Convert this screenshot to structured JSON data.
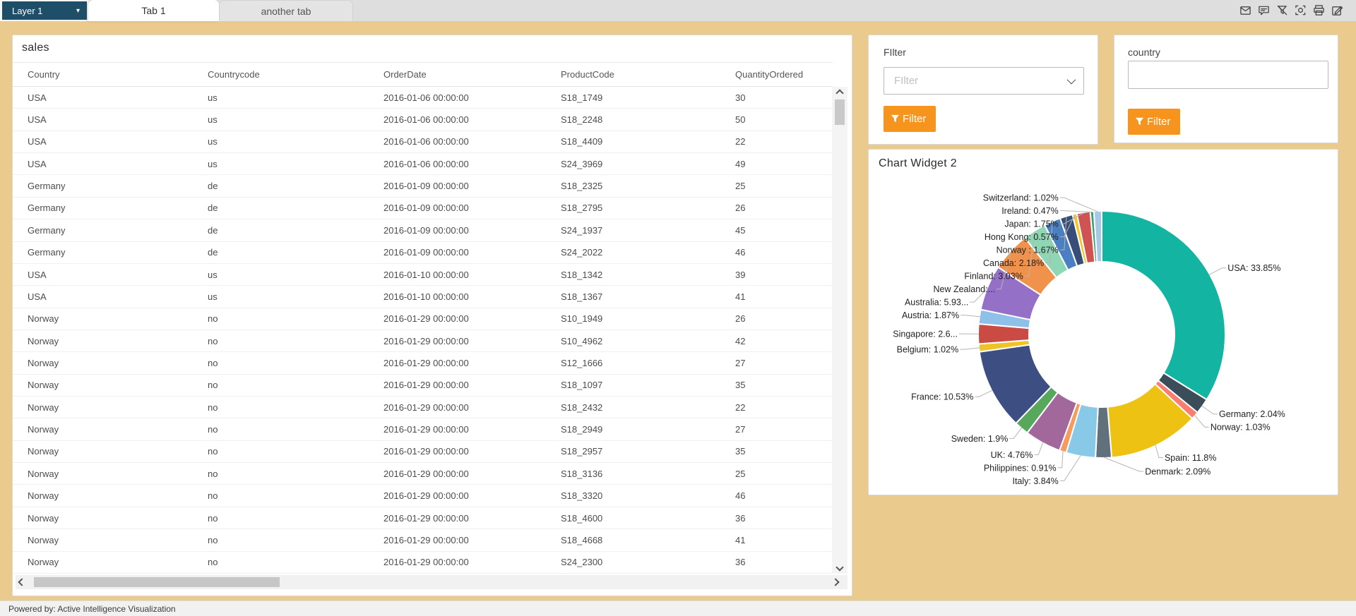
{
  "topbar": {
    "layer_label": "Layer 1",
    "tabs": [
      {
        "label": "Tab 1",
        "active": true
      },
      {
        "label": "another tab",
        "active": false
      }
    ],
    "icons": [
      "mail-icon",
      "comment-icon",
      "filter-clear-icon",
      "screenshot-icon",
      "print-icon",
      "edit-icon"
    ]
  },
  "table_widget": {
    "title": "sales",
    "columns": [
      "Country",
      "Countrycode",
      "OrderDate",
      "ProductCode",
      "QuantityOrdered"
    ],
    "rows": [
      [
        "USA",
        "us",
        "2016-01-06 00:00:00",
        "S18_1749",
        "30"
      ],
      [
        "USA",
        "us",
        "2016-01-06 00:00:00",
        "S18_2248",
        "50"
      ],
      [
        "USA",
        "us",
        "2016-01-06 00:00:00",
        "S18_4409",
        "22"
      ],
      [
        "USA",
        "us",
        "2016-01-06 00:00:00",
        "S24_3969",
        "49"
      ],
      [
        "Germany",
        "de",
        "2016-01-09 00:00:00",
        "S18_2325",
        "25"
      ],
      [
        "Germany",
        "de",
        "2016-01-09 00:00:00",
        "S18_2795",
        "26"
      ],
      [
        "Germany",
        "de",
        "2016-01-09 00:00:00",
        "S24_1937",
        "45"
      ],
      [
        "Germany",
        "de",
        "2016-01-09 00:00:00",
        "S24_2022",
        "46"
      ],
      [
        "USA",
        "us",
        "2016-01-10 00:00:00",
        "S18_1342",
        "39"
      ],
      [
        "USA",
        "us",
        "2016-01-10 00:00:00",
        "S18_1367",
        "41"
      ],
      [
        "Norway",
        "no",
        "2016-01-29 00:00:00",
        "S10_1949",
        "26"
      ],
      [
        "Norway",
        "no",
        "2016-01-29 00:00:00",
        "S10_4962",
        "42"
      ],
      [
        "Norway",
        "no",
        "2016-01-29 00:00:00",
        "S12_1666",
        "27"
      ],
      [
        "Norway",
        "no",
        "2016-01-29 00:00:00",
        "S18_1097",
        "35"
      ],
      [
        "Norway",
        "no",
        "2016-01-29 00:00:00",
        "S18_2432",
        "22"
      ],
      [
        "Norway",
        "no",
        "2016-01-29 00:00:00",
        "S18_2949",
        "27"
      ],
      [
        "Norway",
        "no",
        "2016-01-29 00:00:00",
        "S18_2957",
        "35"
      ],
      [
        "Norway",
        "no",
        "2016-01-29 00:00:00",
        "S18_3136",
        "25"
      ],
      [
        "Norway",
        "no",
        "2016-01-29 00:00:00",
        "S18_3320",
        "46"
      ],
      [
        "Norway",
        "no",
        "2016-01-29 00:00:00",
        "S18_4600",
        "36"
      ],
      [
        "Norway",
        "no",
        "2016-01-29 00:00:00",
        "S18_4668",
        "41"
      ],
      [
        "Norway",
        "no",
        "2016-01-29 00:00:00",
        "S24_2300",
        "36"
      ]
    ]
  },
  "filter_widget": {
    "label": "FIlter",
    "placeholder": "FIlter",
    "button_label": "Filter"
  },
  "country_widget": {
    "label": "country",
    "input_value": "",
    "button_label": "Filter"
  },
  "chart_widget": {
    "title": "Chart Widget 2"
  },
  "chart_data": {
    "type": "pie",
    "donut": true,
    "direction": "clockwise",
    "start_angle_deg": 0,
    "legend_position": "none",
    "slices": [
      {
        "name": "USA",
        "value": 33.85,
        "label": "USA: 33.85%",
        "color": "#13b5a2"
      },
      {
        "name": "Germany",
        "value": 2.04,
        "label": "Germany: 2.04%",
        "color": "#3c4d5a"
      },
      {
        "name": "Norway",
        "value": 1.03,
        "label": "Norway: 1.03%",
        "color": "#fa7d72"
      },
      {
        "name": "Spain",
        "value": 11.8,
        "label": "Spain: 11.8%",
        "color": "#edc213"
      },
      {
        "name": "Denmark",
        "value": 2.09,
        "label": "Denmark: 2.09%",
        "color": "#62707c"
      },
      {
        "name": "Italy",
        "value": 3.84,
        "label": "Italy: 3.84%",
        "color": "#87c9e7"
      },
      {
        "name": "Philippines",
        "value": 0.91,
        "label": "Philippines: 0.91%",
        "color": "#f69b5e"
      },
      {
        "name": "UK",
        "value": 4.76,
        "label": "UK: 4.76%",
        "color": "#a2689c"
      },
      {
        "name": "Sweden",
        "value": 1.9,
        "label": "Sweden: 1.9%",
        "color": "#57a75d"
      },
      {
        "name": "France",
        "value": 10.53,
        "label": "France: 10.53%",
        "color": "#3d4e82"
      },
      {
        "name": "Belgium",
        "value": 1.02,
        "label": "Belgium: 1.02%",
        "color": "#ecc525"
      },
      {
        "name": "Singapore",
        "value": 2.6,
        "label": "Singapore: 2.6...",
        "color": "#ca4a44"
      },
      {
        "name": "Austria",
        "value": 1.87,
        "label": "Austria: 1.87%",
        "color": "#8ec0ea"
      },
      {
        "name": "Australia",
        "value": 5.93,
        "label": "Australia: 5.93...",
        "color": "#9470c7"
      },
      {
        "name": "New Zealand",
        "value": 5.14,
        "label": "New Zealand:...",
        "color": "#f0924c"
      },
      {
        "name": "Finland",
        "value": 3.03,
        "label": "Finland: 3.03%",
        "color": "#8fd6b4"
      },
      {
        "name": "Canada",
        "value": 2.18,
        "label": "Canada: 2.18%",
        "color": "#4a7fc1"
      },
      {
        "name": "Norway ",
        "value": 1.67,
        "label": "Norway : 1.67%",
        "color": "#374f78"
      },
      {
        "name": "Hong Kong",
        "value": 0.57,
        "label": "Hong Kong: 0.57%",
        "color": "#f2c522"
      },
      {
        "name": "Japan",
        "value": 1.75,
        "label": "Japan: 1.75%",
        "color": "#cf5352"
      },
      {
        "name": "Ireland",
        "value": 0.47,
        "label": "Ireland: 0.47%",
        "color": "#3f9e6e"
      },
      {
        "name": "Switzerland",
        "value": 1.02,
        "label": "Switzerland: 1.02%",
        "color": "#a8c8e8"
      }
    ]
  },
  "footer": {
    "text": "Powered by: Active Intelligence Visualization"
  },
  "colors": {
    "background": "#ebca8d",
    "layer_navy": "#1f4e68",
    "accent_orange": "#f7941e"
  }
}
